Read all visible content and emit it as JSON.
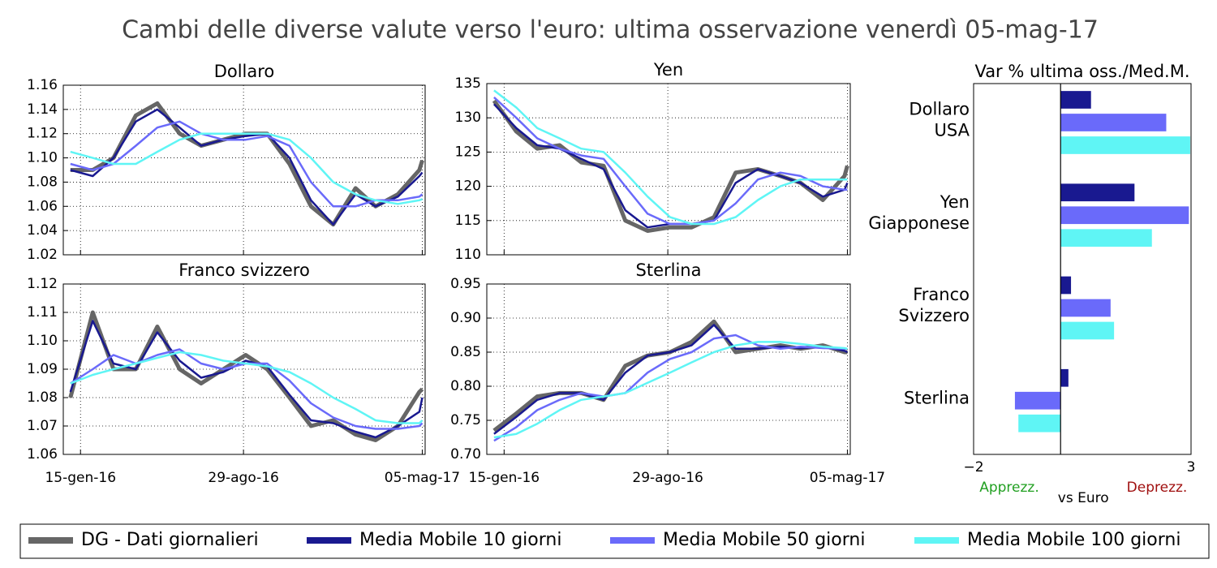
{
  "title": "Cambi delle diverse valute verso l'euro: ultima osservazione venerdì 05-mag-17",
  "chart_data": [
    {
      "type": "line",
      "title": "Dollaro",
      "x": [
        "2016-01-01",
        "2016-02-01",
        "2016-03-01",
        "2016-04-01",
        "2016-05-01",
        "2016-06-01",
        "2016-07-01",
        "2016-08-01",
        "2016-09-01",
        "2016-10-01",
        "2016-11-01",
        "2016-12-01",
        "2017-01-01",
        "2017-02-01",
        "2017-03-01",
        "2017-04-01",
        "2017-05-01",
        "2017-05-05"
      ],
      "series": [
        {
          "name": "DG - Dati giornalieri",
          "color": "#666666",
          "values": [
            1.09,
            1.09,
            1.1,
            1.135,
            1.145,
            1.12,
            1.11,
            1.115,
            1.12,
            1.12,
            1.095,
            1.06,
            1.045,
            1.075,
            1.06,
            1.07,
            1.09,
            1.098
          ]
        },
        {
          "name": "Media Mobile 10 giorni",
          "color": "#191990",
          "values": [
            1.09,
            1.085,
            1.1,
            1.13,
            1.14,
            1.125,
            1.11,
            1.115,
            1.118,
            1.12,
            1.1,
            1.065,
            1.045,
            1.07,
            1.06,
            1.068,
            1.085,
            1.088
          ]
        },
        {
          "name": "Media Mobile 50 giorni",
          "color": "#6a6afa",
          "values": [
            1.095,
            1.09,
            1.095,
            1.11,
            1.125,
            1.13,
            1.12,
            1.115,
            1.115,
            1.118,
            1.11,
            1.08,
            1.06,
            1.06,
            1.065,
            1.065,
            1.068,
            1.07
          ]
        },
        {
          "name": "Media Mobile 100 giorni",
          "color": "#5ff5f5",
          "values": [
            1.105,
            1.1,
            1.095,
            1.095,
            1.105,
            1.115,
            1.12,
            1.12,
            1.12,
            1.12,
            1.115,
            1.1,
            1.08,
            1.07,
            1.065,
            1.062,
            1.065,
            1.066
          ]
        }
      ],
      "xlim": [
        "2015-12-22",
        "2017-05-09"
      ],
      "xticks": [
        "2016-01-15",
        "2016-08-29",
        "2017-05-05"
      ],
      "ylim": [
        1.02,
        1.16
      ],
      "yticks": [
        1.02,
        1.04,
        1.06,
        1.08,
        {
          "value": 1.1,
          "label": "1.10"
        },
        1.12,
        1.14,
        1.16
      ],
      "grid": true
    },
    {
      "type": "line",
      "title": "Yen",
      "x": [
        "2016-01-01",
        "2016-02-01",
        "2016-03-01",
        "2016-04-01",
        "2016-05-01",
        "2016-06-01",
        "2016-07-01",
        "2016-08-01",
        "2016-09-01",
        "2016-10-01",
        "2016-11-01",
        "2016-12-01",
        "2017-01-01",
        "2017-02-01",
        "2017-03-01",
        "2017-04-01",
        "2017-05-01",
        "2017-05-05"
      ],
      "series": [
        {
          "color": "#666666",
          "values": [
            132.5,
            128,
            125.5,
            126,
            123.5,
            123,
            115,
            113.5,
            114,
            114,
            115.5,
            122,
            122.5,
            121.5,
            120.5,
            118,
            121.5,
            123
          ]
        },
        {
          "color": "#191990",
          "values": [
            132,
            128.5,
            126,
            125.5,
            124,
            122.5,
            116.5,
            114,
            114.5,
            114.5,
            115,
            120.5,
            122.5,
            121.5,
            120.5,
            118.5,
            119.5,
            120.5
          ]
        },
        {
          "color": "#6a6afa",
          "values": [
            133,
            130,
            127,
            125.5,
            124.5,
            124,
            120,
            116,
            114.5,
            114.5,
            115,
            117.5,
            121,
            122,
            121.5,
            120,
            119.5,
            119.5
          ]
        },
        {
          "color": "#5ff5f5",
          "values": [
            134,
            131.5,
            128.5,
            127,
            125.5,
            125,
            122,
            118.5,
            115.5,
            114.5,
            114.5,
            115.5,
            118,
            120,
            121,
            121,
            121,
            121
          ]
        }
      ],
      "xlim": [
        "2015-12-22",
        "2017-05-09"
      ],
      "xticks": [
        "2016-01-15",
        "2016-08-29",
        "2017-05-05"
      ],
      "ylim": [
        110,
        135
      ],
      "yticks": [
        110,
        115,
        120,
        125,
        130,
        135
      ],
      "grid": true
    },
    {
      "type": "line",
      "title": "Franco svizzero",
      "x": [
        "2016-01-01",
        "2016-02-01",
        "2016-03-01",
        "2016-04-01",
        "2016-05-01",
        "2016-06-01",
        "2016-07-01",
        "2016-08-01",
        "2016-09-01",
        "2016-10-01",
        "2016-11-01",
        "2016-12-01",
        "2017-01-01",
        "2017-02-01",
        "2017-03-01",
        "2017-04-01",
        "2017-05-01",
        "2017-05-05"
      ],
      "series": [
        {
          "color": "#666666",
          "values": [
            1.08,
            1.11,
            1.09,
            1.09,
            1.105,
            1.09,
            1.085,
            1.09,
            1.095,
            1.09,
            1.08,
            1.07,
            1.072,
            1.067,
            1.065,
            1.07,
            1.082,
            1.083
          ]
        },
        {
          "color": "#191990",
          "values": [
            1.082,
            1.107,
            1.092,
            1.09,
            1.103,
            1.093,
            1.087,
            1.089,
            1.093,
            1.091,
            1.081,
            1.072,
            1.071,
            1.068,
            1.066,
            1.07,
            1.075,
            1.08
          ]
        },
        {
          "color": "#6a6afa",
          "values": [
            1.085,
            1.09,
            1.095,
            1.092,
            1.095,
            1.097,
            1.092,
            1.09,
            1.092,
            1.092,
            1.086,
            1.078,
            1.073,
            1.07,
            1.069,
            1.069,
            1.07,
            1.071
          ]
        },
        {
          "color": "#5ff5f5",
          "values": [
            1.085,
            1.088,
            1.09,
            1.092,
            1.094,
            1.096,
            1.095,
            1.093,
            1.092,
            1.091,
            1.089,
            1.085,
            1.08,
            1.076,
            1.072,
            1.071,
            1.071,
            1.072
          ]
        }
      ],
      "xlim": [
        "2015-12-22",
        "2017-05-09"
      ],
      "xticks": [
        {
          "value": "2016-01-15",
          "label": "15-gen-16"
        },
        {
          "value": "2016-08-29",
          "label": "29-ago-16"
        },
        {
          "value": "2017-05-05",
          "label": "05-mag-17"
        }
      ],
      "ylim": [
        1.06,
        1.12
      ],
      "yticks": [
        1.06,
        1.07,
        1.08,
        1.09,
        {
          "value": 1.1,
          "label": "1.10"
        },
        1.11,
        1.12
      ],
      "grid": true
    },
    {
      "type": "line",
      "title": "Sterlina",
      "x": [
        "2016-01-01",
        "2016-02-01",
        "2016-03-01",
        "2016-04-01",
        "2016-05-01",
        "2016-06-01",
        "2016-07-01",
        "2016-08-01",
        "2016-09-01",
        "2016-10-01",
        "2016-11-01",
        "2016-12-01",
        "2017-01-01",
        "2017-02-01",
        "2017-03-01",
        "2017-04-01",
        "2017-05-01",
        "2017-05-05"
      ],
      "series": [
        {
          "color": "#666666",
          "values": [
            0.735,
            0.76,
            0.785,
            0.79,
            0.79,
            0.78,
            0.83,
            0.845,
            0.85,
            0.865,
            0.895,
            0.85,
            0.855,
            0.86,
            0.855,
            0.86,
            0.85,
            0.85
          ]
        },
        {
          "color": "#191990",
          "values": [
            0.73,
            0.755,
            0.78,
            0.79,
            0.79,
            0.78,
            0.82,
            0.845,
            0.85,
            0.86,
            0.89,
            0.855,
            0.855,
            0.858,
            0.856,
            0.858,
            0.852,
            0.85
          ]
        },
        {
          "color": "#6a6afa",
          "values": [
            0.72,
            0.74,
            0.765,
            0.78,
            0.79,
            0.785,
            0.79,
            0.82,
            0.84,
            0.85,
            0.87,
            0.875,
            0.86,
            0.855,
            0.858,
            0.856,
            0.855,
            0.855
          ]
        },
        {
          "color": "#5ff5f5",
          "values": [
            0.725,
            0.73,
            0.745,
            0.765,
            0.78,
            0.785,
            0.79,
            0.805,
            0.82,
            0.835,
            0.85,
            0.86,
            0.865,
            0.865,
            0.862,
            0.858,
            0.856,
            0.855
          ]
        }
      ],
      "xlim": [
        "2015-12-22",
        "2017-05-09"
      ],
      "xticks": [
        {
          "value": "2016-01-15",
          "label": "15-gen-16"
        },
        {
          "value": "2016-08-29",
          "label": "29-ago-16"
        },
        {
          "value": "2017-05-05",
          "label": "05-mag-17"
        }
      ],
      "ylim": [
        0.7,
        0.95
      ],
      "yticks": [
        {
          "value": 0.7,
          "label": "0.70"
        },
        0.75,
        {
          "value": 0.8,
          "label": "0.80"
        },
        0.85,
        {
          "value": 0.9,
          "label": "0.90"
        },
        0.95
      ],
      "grid": true
    },
    {
      "type": "bar",
      "orientation": "horizontal",
      "title": "Var % ultima oss./Med.M.",
      "categories": [
        "Dollaro USA",
        "Yen Giapponese",
        "Franco Svizzero",
        "Sterlina"
      ],
      "series": [
        {
          "color": "#191990",
          "values": [
            0.7,
            1.7,
            0.24,
            0.18
          ]
        },
        {
          "color": "#6a6afa",
          "values": [
            2.43,
            2.95,
            1.15,
            -1.05
          ]
        },
        {
          "color": "#5ff5f5",
          "values": [
            2.98,
            2.1,
            1.23,
            -0.97
          ]
        }
      ],
      "xlim": [
        -2,
        3
      ],
      "xticks": [
        {
          "value": -2,
          "label": "−2"
        },
        3
      ],
      "annotations": {
        "left": "Apprezz.",
        "center": "vs Euro",
        "right": "Deprezz."
      }
    }
  ],
  "legend_position": "bottom"
}
